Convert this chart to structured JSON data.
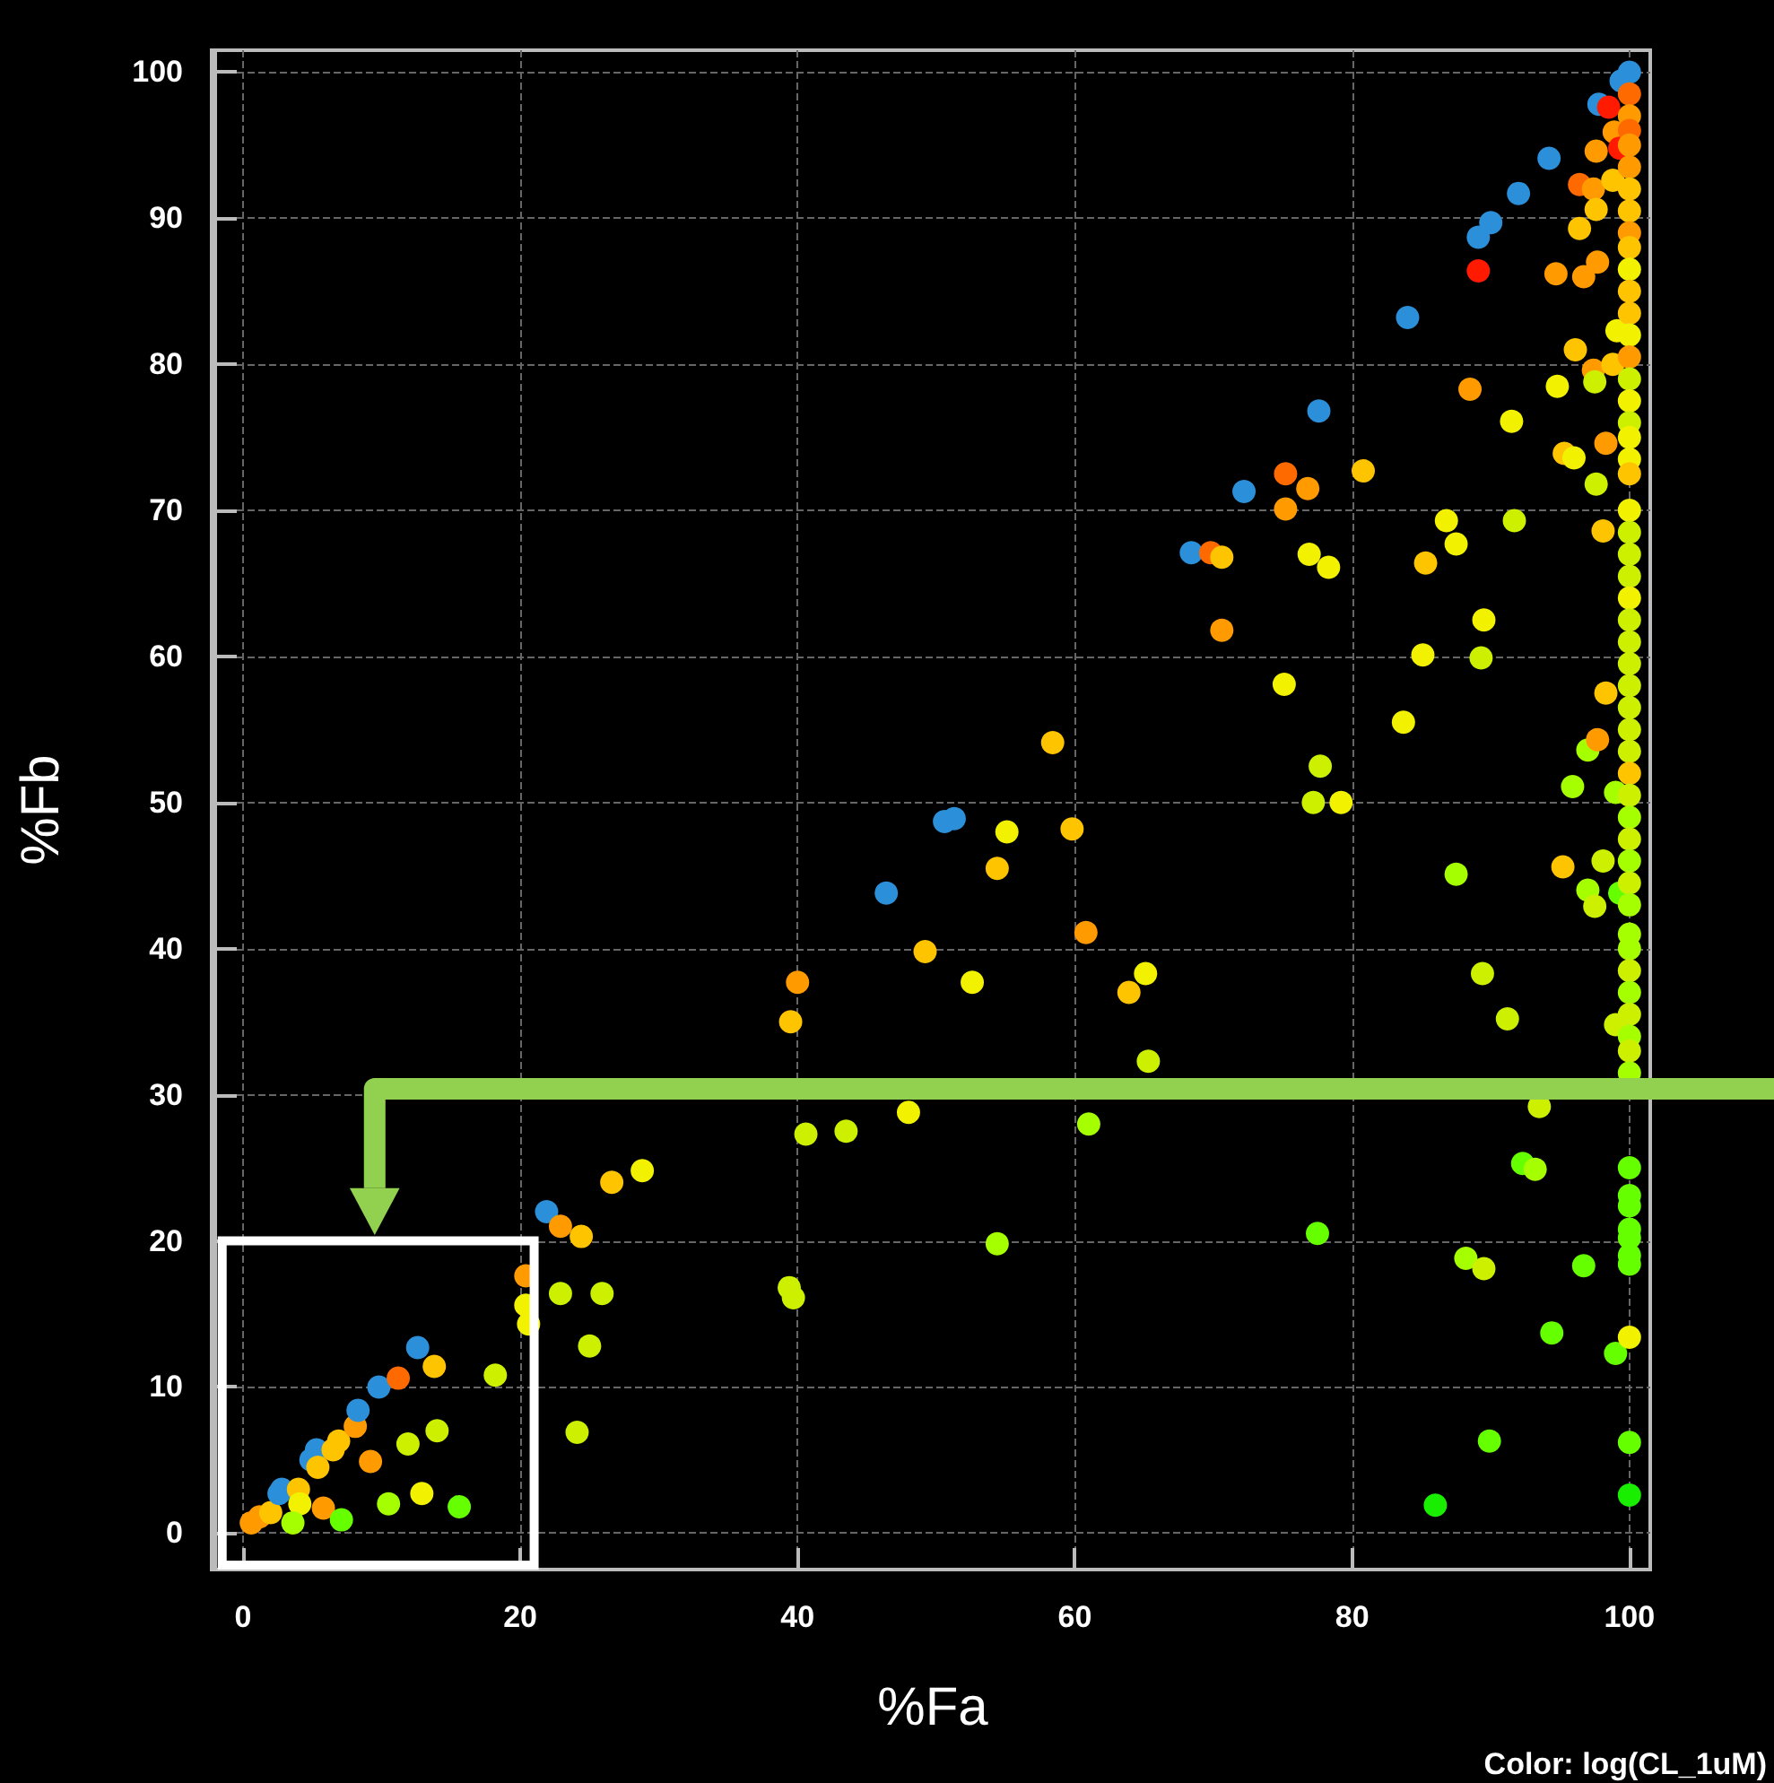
{
  "chart_data": {
    "type": "scatter",
    "xlabel": "%Fa",
    "ylabel": "%Fb",
    "xlim": [
      -2,
      101.5
    ],
    "ylim": [
      -2.5,
      101.5
    ],
    "xticks": [
      0,
      20,
      40,
      60,
      80,
      100
    ],
    "yticks": [
      0,
      10,
      20,
      30,
      40,
      50,
      60,
      70,
      80,
      90,
      100
    ],
    "grid": true,
    "marker": "circle",
    "annotations": [
      "Color: log(CL_1uM)"
    ],
    "series": [
      {
        "x": [
          0.6,
          1.2,
          2.0,
          2.6,
          2.8,
          4.0,
          4.1,
          3.6,
          4.9,
          5.3,
          5.4,
          5.8,
          6.5,
          6.9,
          7.1,
          8.1,
          8.3,
          9.2,
          9.8,
          10.5,
          11.2,
          11.9,
          12.6,
          12.9,
          13.8,
          14.0,
          15.6,
          18.2,
          20.4,
          20.4,
          20.6,
          21.9,
          22.9,
          22.9,
          24.4,
          24.1,
          25,
          25.9,
          26.6,
          28.8,
          39.5,
          39.4,
          39.7,
          40,
          40.6,
          43.5,
          46.4,
          48,
          49.2,
          50.6,
          51.3,
          52.6,
          54.4,
          54.4,
          55.1,
          58.4,
          59.8,
          60.8,
          61,
          63.9,
          65.1,
          65.3,
          68.4,
          69.8,
          70.6,
          70.6,
          72.2,
          75.1,
          75.2,
          75.2,
          76.8,
          76.9,
          77.2,
          77.5,
          77.6,
          77.7,
          78.3,
          79.2,
          80.8,
          83.7,
          84,
          85.1,
          85.3,
          86,
          86.8,
          87.5,
          87.5,
          88.2,
          88.5,
          89.1,
          89.1,
          89.3,
          89.4,
          89.5,
          89.5,
          89.9,
          90,
          91.2,
          91.5,
          91.7,
          92,
          92.3,
          93.2,
          93.5,
          94.2,
          94.4,
          94.7,
          94.8,
          95.2,
          95.3,
          95.9,
          96,
          96.1,
          96.4,
          96.4,
          96.7,
          96.7,
          97,
          97,
          97.4,
          97.4,
          97.5,
          97.5,
          97.6,
          97.6,
          97.6,
          97.7,
          97.7,
          97.8,
          98.1,
          98.1,
          98.3,
          98.3,
          98.5,
          98.8,
          98.8,
          98.9,
          99,
          99,
          99,
          99.1,
          99.3,
          99.3,
          99.4,
          100,
          100,
          100,
          100,
          100,
          100,
          100,
          100,
          100,
          100,
          100,
          100,
          100,
          100,
          100,
          100,
          100,
          100,
          100,
          100,
          100,
          100,
          100,
          100,
          100,
          100,
          100,
          100,
          100,
          100,
          100,
          100,
          100,
          100,
          100,
          100,
          100,
          100,
          100,
          100,
          100,
          100,
          100,
          100,
          100,
          100,
          100,
          100,
          100,
          100,
          100,
          100,
          100,
          100,
          100,
          100,
          100,
          100
        ],
        "values": [
          0.7,
          1.1,
          1.4,
          2.7,
          3.0,
          3.0,
          2.0,
          0.7,
          5.0,
          5.7,
          4.5,
          1.7,
          5.7,
          6.3,
          0.9,
          7.3,
          8.4,
          4.9,
          10,
          2.0,
          10.6,
          6.1,
          12.7,
          2.7,
          11.4,
          7.0,
          1.8,
          10.8,
          17.6,
          15.6,
          14.3,
          22,
          21,
          16.4,
          20.3,
          6.9,
          12.8,
          16.4,
          24,
          24.8,
          35,
          16.8,
          16.1,
          37.7,
          27.3,
          27.5,
          43.8,
          28.8,
          39.8,
          48.7,
          48.9,
          37.7,
          45.5,
          19.8,
          48,
          54.1,
          48.2,
          41.1,
          28,
          37,
          38.3,
          32.3,
          67.1,
          67.1,
          66.8,
          61.8,
          71.3,
          58.1,
          72.5,
          70.1,
          71.5,
          67,
          50,
          20.5,
          76.8,
          52.5,
          66.1,
          50,
          72.7,
          55.5,
          83.2,
          60.1,
          66.4,
          1.9,
          69.3,
          67.7,
          45.1,
          18.8,
          78.3,
          88.7,
          86.4,
          59.9,
          38.3,
          62.5,
          18.1,
          6.3,
          89.7,
          35.2,
          76.1,
          69.3,
          91.7,
          25.3,
          24.9,
          29.2,
          94.1,
          13.7,
          86.2,
          78.5,
          45.6,
          73.9,
          51.1,
          73.6,
          81,
          92.3,
          89.3,
          86,
          18.3,
          53.6,
          44,
          92,
          79.6,
          78.8,
          42.9,
          94.6,
          90.6,
          71.8,
          87,
          54.3,
          97.8,
          68.6,
          46,
          74.6,
          57.5,
          97.6,
          92.6,
          80,
          95.9,
          12.3,
          50.7,
          34.8,
          82.3,
          94.8,
          43.8,
          99.4,
          100,
          98.5,
          97,
          96,
          95,
          93.5,
          92,
          90.5,
          89,
          88,
          86.5,
          85,
          83.5,
          82,
          80.5,
          79,
          77.5,
          76,
          75,
          73.5,
          72.5,
          70,
          68.5,
          67,
          65.5,
          64,
          62.5,
          61,
          59.5,
          58,
          56.5,
          55,
          53.5,
          52,
          50.5,
          49,
          47.5,
          46,
          44.5,
          43,
          41,
          40,
          38.5,
          37,
          35.5,
          34,
          33,
          31.5,
          25,
          23.1,
          22.4,
          20.8,
          20.2,
          19,
          18.4,
          13.4,
          6.2,
          2.6
        ],
        "colors": [
          "#ff9a00",
          "#ff9a00",
          "#ffc400",
          "#2b90d9",
          "#2b90d9",
          "#ffc400",
          "#f2f200",
          "#a6ff00",
          "#2b90d9",
          "#2b90d9",
          "#ffc400",
          "#ff9a00",
          "#ffc400",
          "#ffc400",
          "#66ff00",
          "#ff9a00",
          "#2b90d9",
          "#ff9a00",
          "#2b90d9",
          "#a6ff00",
          "#ff6a00",
          "#ccf000",
          "#2b90d9",
          "#f2f200",
          "#ffc400",
          "#ccf000",
          "#66ff00",
          "#ccf000",
          "#ff9a00",
          "#f2f200",
          "#f2f200",
          "#2b90d9",
          "#ff9a00",
          "#ccf000",
          "#ffc400",
          "#ccf000",
          "#ccf000",
          "#ccf000",
          "#ffc400",
          "#f2f200",
          "#ffc400",
          "#ccf000",
          "#ccf000",
          "#ff9a00",
          "#ccf000",
          "#ccf000",
          "#2b90d9",
          "#f2f200",
          "#ffc400",
          "#2b90d9",
          "#2b90d9",
          "#f2f200",
          "#ffc400",
          "#a6ff00",
          "#f2f200",
          "#ffc400",
          "#ffc400",
          "#ff9a00",
          "#a6ff00",
          "#ffc400",
          "#f2f200",
          "#ccf000",
          "#2b90d9",
          "#ff6a00",
          "#ffc400",
          "#ff9a00",
          "#2b90d9",
          "#f2f200",
          "#ff6a00",
          "#ff9a00",
          "#ff9a00",
          "#f2f200",
          "#ccf000",
          "#66ff00",
          "#2b90d9",
          "#ccf000",
          "#f2f200",
          "#f2f200",
          "#ffc400",
          "#f2f200",
          "#2b90d9",
          "#f2f200",
          "#ffc400",
          "#1aee00",
          "#f2f200",
          "#f2f200",
          "#a6ff00",
          "#a6ff00",
          "#ff9a00",
          "#2b90d9",
          "#ff1a00",
          "#ccf000",
          "#ccf000",
          "#f2f200",
          "#ccf000",
          "#66ff00",
          "#2b90d9",
          "#ccf000",
          "#f2f200",
          "#ccf000",
          "#2b90d9",
          "#66ff00",
          "#a6ff00",
          "#ccf000",
          "#2b90d9",
          "#66ff00",
          "#ff9a00",
          "#f2f200",
          "#ffc400",
          "#ffc400",
          "#a6ff00",
          "#f2f200",
          "#ffc400",
          "#ff6a00",
          "#ffc400",
          "#ff9a00",
          "#66ff00",
          "#a6ff00",
          "#a6ff00",
          "#ff9a00",
          "#ff9a00",
          "#ccf000",
          "#ccf000",
          "#ff9a00",
          "#ffc400",
          "#ccf000",
          "#ff9a00",
          "#ff9a00",
          "#2b90d9",
          "#ffc400",
          "#ccf000",
          "#ff9a00",
          "#ffc400",
          "#ff1a00",
          "#ffc400",
          "#ffc400",
          "#ff9a00",
          "#66ff00",
          "#a6ff00",
          "#ccf000",
          "#f2f200",
          "#ff1a00",
          "#66ff00",
          "#2b90d9",
          "#2b90d9",
          "#ff6a00",
          "#ff9a00",
          "#ff6a00",
          "#ff9a00",
          "#ff9a00",
          "#ffc400",
          "#ffc400",
          "#ff9a00",
          "#ffc400",
          "#f2f200",
          "#ffc400",
          "#ffc400",
          "#f2f200",
          "#ff9a00",
          "#ccf000",
          "#f2f200",
          "#ccf000",
          "#f2f200",
          "#f2f200",
          "#ffc400",
          "#f2f200",
          "#ccf000",
          "#ccf000",
          "#ccf000",
          "#f2f200",
          "#ccf000",
          "#ccf000",
          "#ccf000",
          "#ccf000",
          "#ccf000",
          "#ccf000",
          "#ccf000",
          "#ffc400",
          "#ccf000",
          "#a6ff00",
          "#ccf000",
          "#a6ff00",
          "#ccf000",
          "#a6ff00",
          "#a6ff00",
          "#a6ff00",
          "#ccf000",
          "#a6ff00",
          "#ccf000",
          "#a6ff00",
          "#ccf000",
          "#a6ff00",
          "#66ff00",
          "#66ff00",
          "#66ff00",
          "#66ff00",
          "#66ff00",
          "#66ff00",
          "#66ff00",
          "#f2f200",
          "#66ff00",
          "#1aee00"
        ]
      }
    ]
  }
}
